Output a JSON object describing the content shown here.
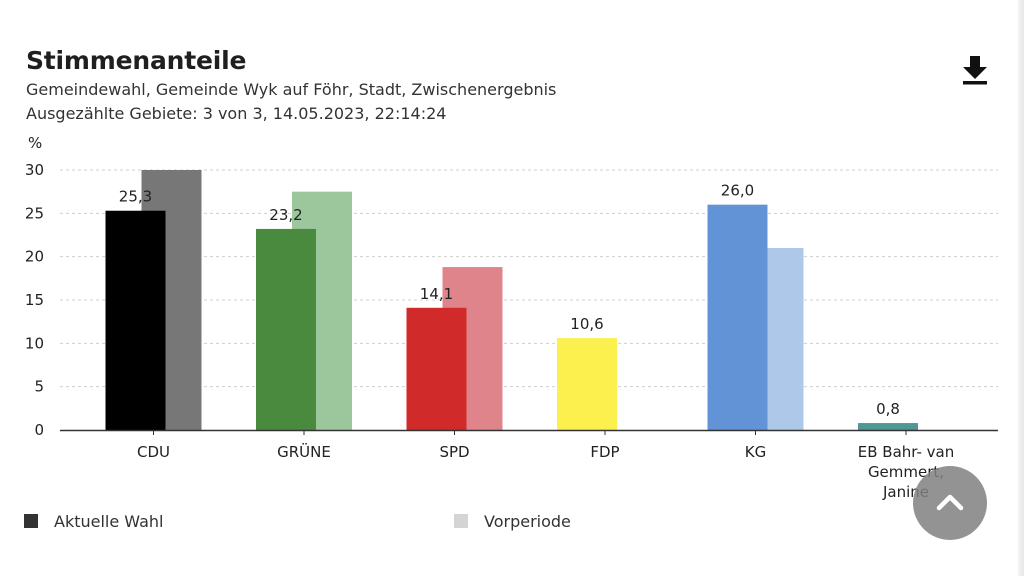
{
  "header": {
    "title": "Stimmenanteile",
    "subtitle_line1": "Gemeindewahl, Gemeinde Wyk auf Föhr, Stadt, Zwischenergebnis",
    "subtitle_line2": "Ausgezählte Gebiete: 3 von 3, 14.05.2023, 22:14:24"
  },
  "icons": {
    "download": "download-icon",
    "scroll_top": "chevron-up-icon"
  },
  "chart_data": {
    "type": "bar",
    "ylabel": "%",
    "ylim": [
      0,
      30
    ],
    "yticks": [
      0,
      5,
      10,
      15,
      20,
      25,
      30
    ],
    "grid": true,
    "legend_position": "bottom",
    "categories": [
      "CDU",
      "GRÜNE",
      "SPD",
      "FDP",
      "KG",
      "EB Bahr- van Gemmert, Janine"
    ],
    "category_label_lines": [
      [
        "CDU"
      ],
      [
        "GRÜNE"
      ],
      [
        "SPD"
      ],
      [
        "FDP"
      ],
      [
        "KG"
      ],
      [
        "EB Bahr- van",
        "Gemmert,",
        "Janine"
      ]
    ],
    "series": [
      {
        "name": "Aktuelle Wahl",
        "values": [
          25.3,
          23.2,
          14.1,
          10.6,
          26.0,
          0.8
        ],
        "labels": [
          "25,3",
          "23,2",
          "14,1",
          "10,6",
          "26,0",
          "0,8"
        ],
        "colors": [
          "#000000",
          "#4a8a3f",
          "#d02a2a",
          "#fbf04d",
          "#6393d7",
          "#4e9895"
        ]
      },
      {
        "name": "Vorperiode",
        "values": [
          30.0,
          27.5,
          18.8,
          null,
          21.0,
          null
        ],
        "colors": [
          "#777777",
          "#9cc79c",
          "#e0848c",
          null,
          "#aec8ea",
          null
        ]
      }
    ]
  },
  "legend": [
    {
      "label": "Aktuelle Wahl",
      "color": "#333333"
    },
    {
      "label": "Vorperiode",
      "color": "#d4d4d4"
    }
  ]
}
